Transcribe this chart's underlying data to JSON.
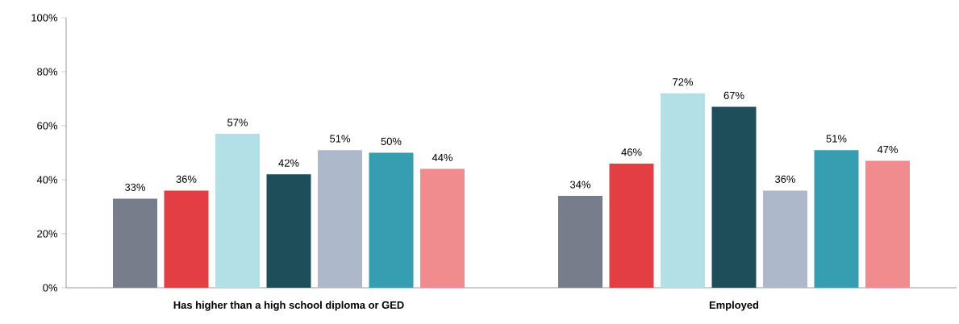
{
  "chart_data": {
    "type": "bar",
    "categories": [
      "Has higher than a high school diploma or GED",
      "Employed"
    ],
    "series": [
      {
        "color": "#777d8a",
        "values": [
          33,
          34
        ],
        "value_labels": [
          "33%",
          "34%"
        ]
      },
      {
        "color": "#e23e44",
        "values": [
          36,
          46
        ],
        "value_labels": [
          "36%",
          "46%"
        ]
      },
      {
        "color": "#b3e0e6",
        "values": [
          57,
          72
        ],
        "value_labels": [
          "57%",
          "72%"
        ]
      },
      {
        "color": "#1f4e5b",
        "values": [
          42,
          67
        ],
        "value_labels": [
          "42%",
          "67%"
        ]
      },
      {
        "color": "#adb8ca",
        "values": [
          51,
          36
        ],
        "value_labels": [
          "51%",
          "36%"
        ]
      },
      {
        "color": "#369eb0",
        "values": [
          50,
          51
        ],
        "value_labels": [
          "50%",
          "51%"
        ]
      },
      {
        "color": "#f08b8e",
        "values": [
          44,
          47
        ],
        "value_labels": [
          "44%",
          "47%"
        ]
      }
    ],
    "ylim": [
      0,
      100
    ],
    "yticks": [
      {
        "value": 0,
        "label": "0%"
      },
      {
        "value": 20,
        "label": "20%"
      },
      {
        "value": 40,
        "label": "40%"
      },
      {
        "value": 60,
        "label": "60%"
      },
      {
        "value": 80,
        "label": "80%"
      },
      {
        "value": 100,
        "label": "100%"
      }
    ],
    "grid": false
  }
}
